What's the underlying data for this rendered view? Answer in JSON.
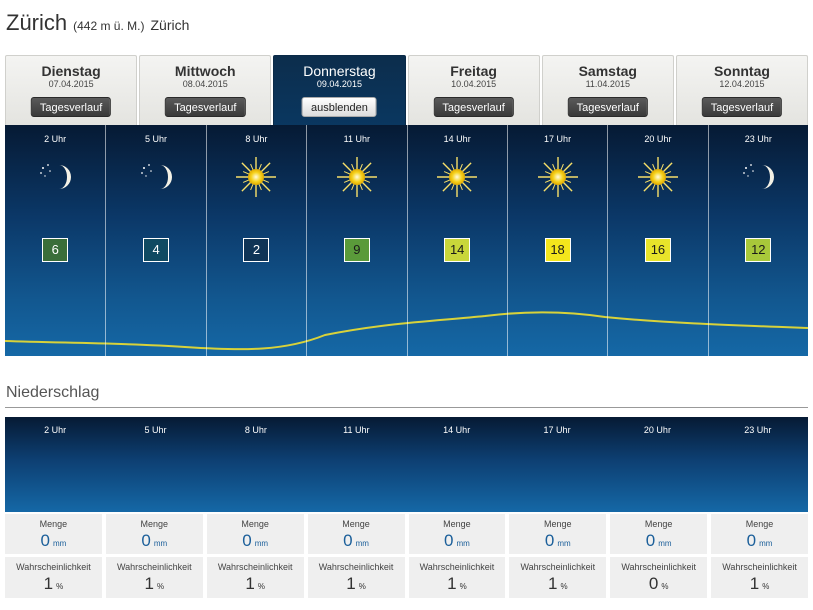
{
  "location": {
    "city": "Zürich",
    "altitude": "(442 m ü. M.)",
    "region": "Zürich"
  },
  "days": [
    {
      "name": "Dienstag",
      "date": "07.04.2015",
      "button": "Tagesverlauf",
      "active": false
    },
    {
      "name": "Mittwoch",
      "date": "08.04.2015",
      "button": "Tagesverlauf",
      "active": false
    },
    {
      "name": "Donnerstag",
      "date": "09.04.2015",
      "button": "ausblenden",
      "active": true
    },
    {
      "name": "Freitag",
      "date": "10.04.2015",
      "button": "Tagesverlauf",
      "active": false
    },
    {
      "name": "Samstag",
      "date": "11.04.2015",
      "button": "Tagesverlauf",
      "active": false
    },
    {
      "name": "Sonntag",
      "date": "12.04.2015",
      "button": "Tagesverlauf",
      "active": false
    }
  ],
  "hourly": [
    {
      "hour": "2 Uhr",
      "icon": "clear-night-moon-icon",
      "temp": "6",
      "temp_color": "#3a6e3a",
      "temp_text_color": "#ffffff"
    },
    {
      "hour": "5 Uhr",
      "icon": "clear-night-moon-icon",
      "temp": "4",
      "temp_color": "#0f4a62",
      "temp_text_color": "#ffffff"
    },
    {
      "hour": "8 Uhr",
      "icon": "sun-icon",
      "temp": "2",
      "temp_color": "#0f3456",
      "temp_text_color": "#ffffff"
    },
    {
      "hour": "11 Uhr",
      "icon": "sun-icon",
      "temp": "9",
      "temp_color": "#5a9a3a",
      "temp_text_color": "#1a1a1a"
    },
    {
      "hour": "14 Uhr",
      "icon": "sun-icon",
      "temp": "14",
      "temp_color": "#c9d63a",
      "temp_text_color": "#1a1a1a"
    },
    {
      "hour": "17 Uhr",
      "icon": "sun-icon",
      "temp": "18",
      "temp_color": "#f4e61c",
      "temp_text_color": "#1a1a1a"
    },
    {
      "hour": "20 Uhr",
      "icon": "sun-icon",
      "temp": "16",
      "temp_color": "#e8e42a",
      "temp_text_color": "#1a1a1a"
    },
    {
      "hour": "23 Uhr",
      "icon": "clear-night-moon-icon",
      "temp": "12",
      "temp_color": "#a8c83a",
      "temp_text_color": "#1a1a1a"
    }
  ],
  "precipitation": {
    "title": "Niederschlag",
    "amount_label": "Menge",
    "amount_unit": "mm",
    "probability_label": "Wahrscheinlichkeit",
    "probability_unit": "%",
    "amounts": [
      "0",
      "0",
      "0",
      "0",
      "0",
      "0",
      "0",
      "0"
    ],
    "probabilities": [
      "1",
      "1",
      "1",
      "1",
      "1",
      "1",
      "0",
      "1"
    ]
  },
  "colors": {
    "panel_dark": "#061a34",
    "panel_light": "#1568a6",
    "curve": "#d8d23a",
    "amount_text": "#1b5f9a"
  }
}
